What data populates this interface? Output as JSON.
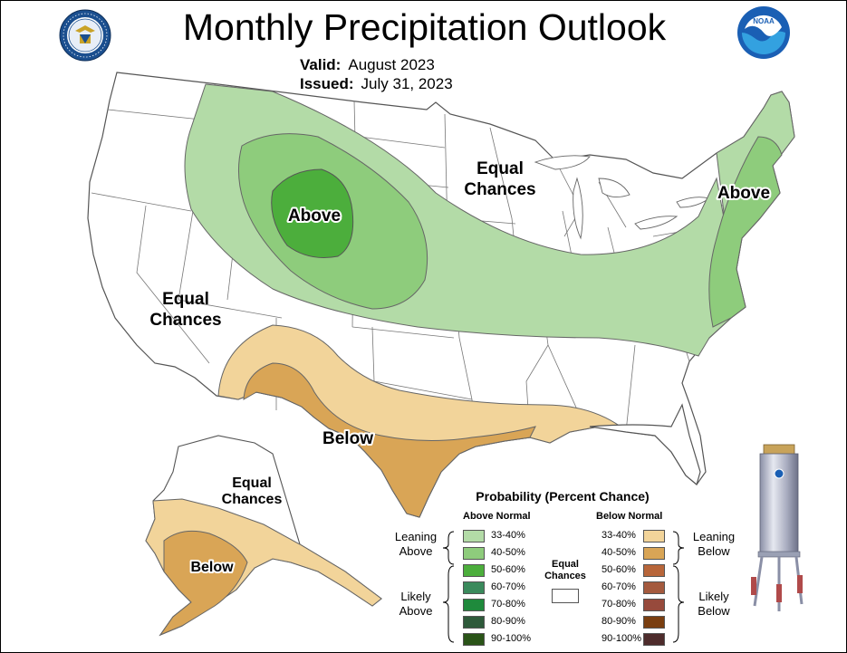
{
  "title": "Monthly Precipitation Outlook",
  "valid": {
    "label": "Valid:",
    "value": "August 2023"
  },
  "issued": {
    "label": "Issued:",
    "value": "July 31, 2023"
  },
  "map": {
    "labels": {
      "above_central": "Above",
      "above_east": "Above",
      "equal_north_1": "Equal",
      "equal_north_2": "Chances",
      "equal_west_1": "Equal",
      "equal_west_2": "Chances",
      "below_south": "Below",
      "alaska_equal_1": "Equal",
      "alaska_equal_2": "Chances",
      "alaska_below": "Below"
    }
  },
  "legend": {
    "title": "Probability (Percent Chance)",
    "above_heading": "Above Normal",
    "below_heading": "Below Normal",
    "equal_label_1": "Equal",
    "equal_label_2": "Chances",
    "leaning_above_1": "Leaning",
    "leaning_above_2": "Above",
    "likely_above_1": "Likely",
    "likely_above_2": "Above",
    "leaning_below_1": "Leaning",
    "leaning_below_2": "Below",
    "likely_below_1": "Likely",
    "likely_below_2": "Below",
    "above": [
      {
        "label": "33-40%",
        "color": "#b3dba7"
      },
      {
        "label": "40-50%",
        "color": "#8ecc7c"
      },
      {
        "label": "50-60%",
        "color": "#4cae3c"
      },
      {
        "label": "60-70%",
        "color": "#3a8a5c"
      },
      {
        "label": "70-80%",
        "color": "#1f8a3c"
      },
      {
        "label": "80-90%",
        "color": "#2e5a3a"
      },
      {
        "label": "90-100%",
        "color": "#2a5418"
      }
    ],
    "below": [
      {
        "label": "33-40%",
        "color": "#f2d49a"
      },
      {
        "label": "40-50%",
        "color": "#d9a556"
      },
      {
        "label": "50-60%",
        "color": "#b8663a"
      },
      {
        "label": "60-70%",
        "color": "#a45a3e"
      },
      {
        "label": "70-80%",
        "color": "#974a3c"
      },
      {
        "label": "80-90%",
        "color": "#7a3e10"
      },
      {
        "label": "90-100%",
        "color": "#4e2c2c"
      }
    ]
  },
  "colors": {
    "leaning_above": "#b3dba7",
    "likely_above_40": "#8ecc7c",
    "above_50": "#4cae3c",
    "leaning_below": "#f2d49a",
    "below_40": "#d9a556"
  },
  "icons": [
    "commerce-seal-icon",
    "noaa-logo-icon",
    "rain-gauge-icon"
  ]
}
